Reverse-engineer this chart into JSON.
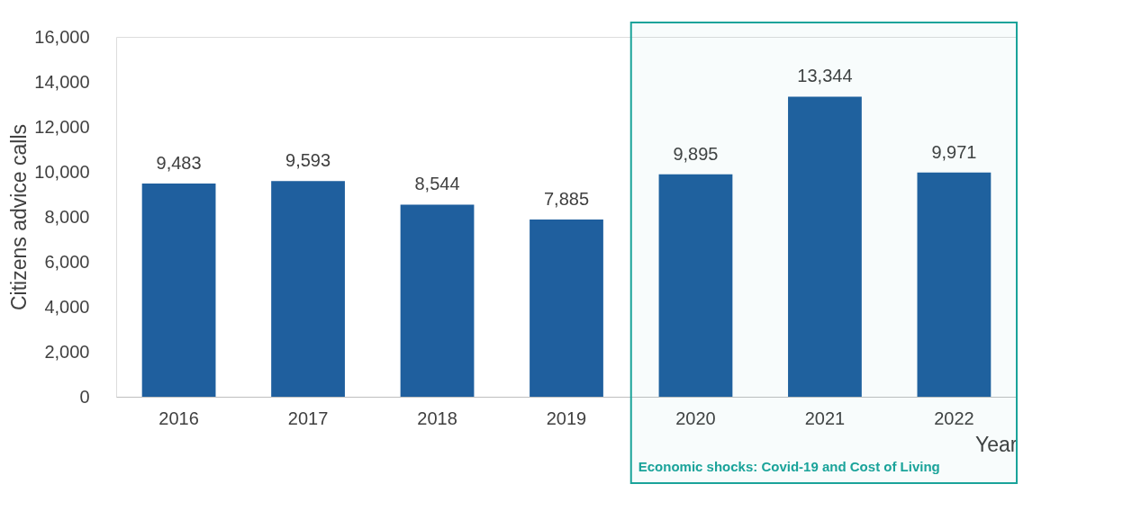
{
  "chart_data": {
    "type": "bar",
    "xlabel": "Year",
    "ylabel": "Citizens advice calls",
    "categories": [
      "2016",
      "2017",
      "2018",
      "2019",
      "2020",
      "2021",
      "2022"
    ],
    "values": [
      9483,
      9593,
      8544,
      7885,
      9895,
      13344,
      9971
    ],
    "color": "#1f5f9e",
    "value_labels": [
      "9,483",
      "9,593",
      "8,544",
      "7,885",
      "9,895",
      "13,344",
      "9,971"
    ],
    "ylim": [
      0,
      16000
    ],
    "yticks": [
      0,
      {
        "value": 2000,
        "label": "2,000"
      },
      {
        "value": 4000,
        "label": "4,000"
      },
      {
        "value": 6000,
        "label": "6,000"
      },
      {
        "value": 8000,
        "label": "8,000"
      },
      {
        "value": 10000,
        "label": "10,000"
      },
      {
        "value": 12000,
        "label": "12,000"
      },
      {
        "value": 14000,
        "label": "14,000"
      },
      {
        "value": 16000,
        "label": "16,000"
      }
    ],
    "grid": false,
    "bands": [
      {
        "axis": "x",
        "from": "2020",
        "to": "2022",
        "label": "Economic shocks: Covid-19 and Cost of Living",
        "color": "#1aa39a"
      }
    ]
  }
}
